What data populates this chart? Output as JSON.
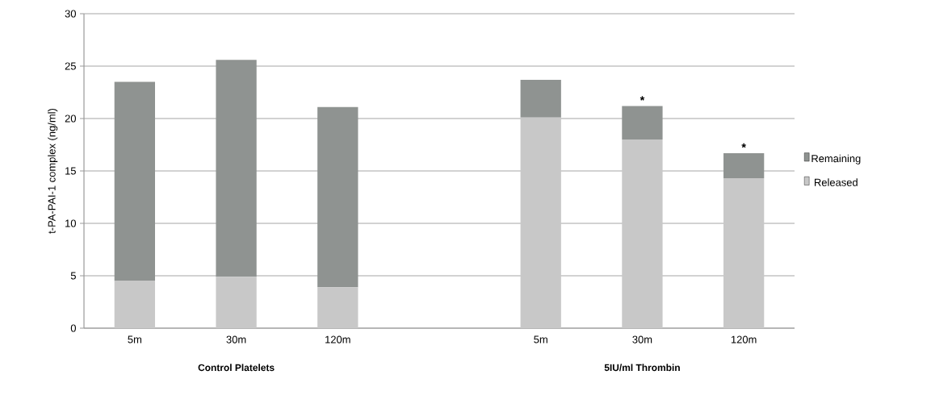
{
  "chart_data": {
    "type": "bar",
    "stacked": true,
    "ylabel": "t-PA-PAI-1 complex (ng/ml)",
    "categories": [
      "5m",
      "30m",
      "120m",
      null,
      "5m",
      "30m",
      "120m"
    ],
    "series": [
      {
        "name": "Released",
        "color": "#c8c8c8",
        "values": [
          4.5,
          4.9,
          3.9,
          null,
          20.1,
          18.0,
          14.3
        ]
      },
      {
        "name": "Remaining",
        "color": "#8f9391",
        "values": [
          19.0,
          20.7,
          17.2,
          null,
          3.6,
          3.2,
          2.4
        ]
      }
    ],
    "ylim": [
      0,
      30
    ],
    "yticks": [
      0,
      5,
      10,
      15,
      20,
      25,
      30
    ],
    "grid": "y",
    "legend": "right",
    "annotations": [
      "Control Platelets",
      "5IU/ml Thrombin",
      "*",
      "*"
    ]
  }
}
